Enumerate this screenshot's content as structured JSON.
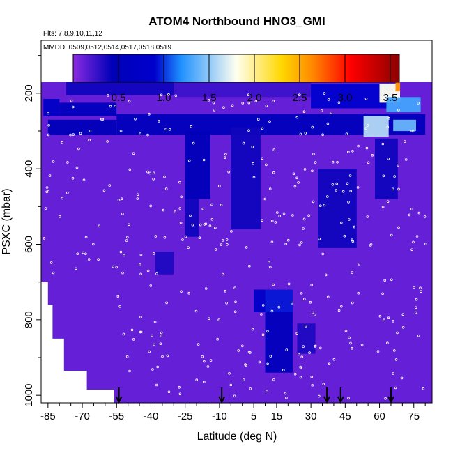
{
  "chart_data": {
    "type": "heatmap",
    "title": "ATOM4 Northbound HNO3_GMI",
    "subtitle_flights": "Flts: 7,8,9,10,11,12",
    "subtitle_dates": "MMDD: 0509,0512,0514,0517,0518,0519",
    "xlabel": "Latitude (deg N)",
    "ylabel": "PSXC (mbar)",
    "xlim": [
      -88,
      83
    ],
    "ylim": [
      1020,
      60
    ],
    "x_ticks": [
      "-85",
      "-70",
      "-55",
      "-40",
      "-25",
      "-10",
      "5",
      "15",
      "30",
      "45",
      "60",
      "75"
    ],
    "y_ticks": [
      "200",
      "400",
      "600",
      "800",
      "1000"
    ],
    "colorbar": {
      "min": 0,
      "max": 3.6,
      "tick_labels": [
        "0.5",
        "1.0",
        "1.5",
        "2.0",
        "2.5",
        "3.0",
        "3.5"
      ],
      "colors": [
        "#8a2be2",
        "#00008b",
        "#1e90ff",
        "#fffff0",
        "#ffd700",
        "#ff8c00",
        "#ff0000",
        "#8b0000"
      ]
    },
    "colorbar_ticks": [
      0.5,
      1.0,
      1.5,
      2.0,
      2.5,
      3.0,
      3.5
    ],
    "x_tick_values": [
      -85,
      -70,
      -55,
      -40,
      -25,
      -10,
      5,
      15,
      30,
      45,
      60,
      75
    ],
    "y_tick_values": [
      200,
      400,
      600,
      800,
      1000
    ],
    "background_value": 0.12,
    "grid": false,
    "arrow_latitudes": [
      -54,
      -9,
      37,
      43,
      65
    ],
    "high_value_patches": [
      {
        "lat": [
          -77,
          -30
        ],
        "p": [
          170,
          205
        ],
        "value": 0.4
      },
      {
        "lat": [
          -30,
          30
        ],
        "p": [
          170,
          210
        ],
        "value": 0.25
      },
      {
        "lat": [
          30,
          65
        ],
        "p": [
          175,
          240
        ],
        "value": 0.9
      },
      {
        "lat": [
          60,
          69
        ],
        "p": [
          175,
          225
        ],
        "value": 1.8
      },
      {
        "lat": [
          67,
          69
        ],
        "p": [
          170,
          195
        ],
        "value": 2.6
      },
      {
        "lat": [
          63,
          78
        ],
        "p": [
          210,
          250
        ],
        "value": 1.3
      },
      {
        "lat": [
          -87,
          -80
        ],
        "p": [
          215,
          260
        ],
        "value": 0.75
      },
      {
        "lat": [
          -80,
          -55
        ],
        "p": [
          225,
          260
        ],
        "value": 0.55
      },
      {
        "lat": [
          -55,
          80
        ],
        "p": [
          255,
          310
        ],
        "value": 0.5
      },
      {
        "lat": [
          -85,
          -55
        ],
        "p": [
          270,
          310
        ],
        "value": 0.45
      },
      {
        "lat": [
          53,
          64
        ],
        "p": [
          260,
          315
        ],
        "value": 1.6
      },
      {
        "lat": [
          66,
          76
        ],
        "p": [
          270,
          300
        ],
        "value": 1.4
      },
      {
        "lat": [
          -25,
          -14
        ],
        "p": [
          300,
          480
        ],
        "value": 0.45
      },
      {
        "lat": [
          -25,
          -19
        ],
        "p": [
          480,
          580
        ],
        "value": 0.4
      },
      {
        "lat": [
          -5,
          8
        ],
        "p": [
          290,
          560
        ],
        "value": 0.4
      },
      {
        "lat": [
          5,
          10
        ],
        "p": [
          720,
          780
        ],
        "value": 0.8
      },
      {
        "lat": [
          10,
          22
        ],
        "p": [
          720,
          780
        ],
        "value": 0.95
      },
      {
        "lat": [
          10,
          22
        ],
        "p": [
          780,
          940
        ],
        "value": 0.5
      },
      {
        "lat": [
          33,
          50
        ],
        "p": [
          400,
          610
        ],
        "value": 0.4
      },
      {
        "lat": [
          58,
          68
        ],
        "p": [
          320,
          480
        ],
        "value": 0.4
      },
      {
        "lat": [
          -38,
          -30
        ],
        "p": [
          620,
          680
        ],
        "value": 0.35
      },
      {
        "lat": [
          24,
          32
        ],
        "p": [
          810,
          890
        ],
        "value": 0.35
      }
    ]
  }
}
